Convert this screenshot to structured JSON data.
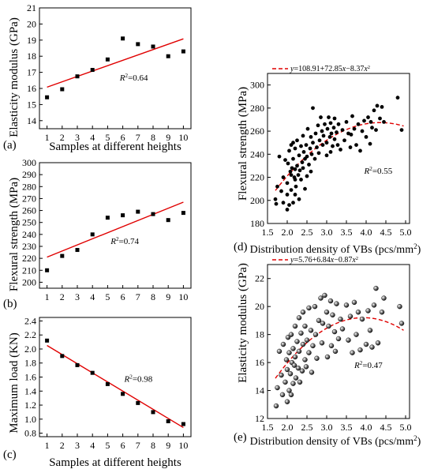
{
  "colors": {
    "fit_line": "#e00000",
    "points": "#000000",
    "axes": "#000000"
  },
  "chart_data": [
    {
      "id": "a",
      "type": "scatter",
      "panel_label": "(a)",
      "xlabel": "Samples at different heights",
      "ylabel": "Elasticity modulus (GPa)",
      "xlim": [
        0.5,
        10.5
      ],
      "ylim": [
        13.5,
        21
      ],
      "xticks": [
        1,
        2,
        3,
        4,
        5,
        6,
        7,
        8,
        9,
        10
      ],
      "yticks": [
        14,
        15,
        16,
        17,
        18,
        19,
        20,
        21
      ],
      "marker": "square",
      "points": [
        [
          1,
          15.45
        ],
        [
          2,
          15.95
        ],
        [
          3,
          16.75
        ],
        [
          4,
          17.15
        ],
        [
          5,
          17.8
        ],
        [
          6,
          19.1
        ],
        [
          7,
          18.75
        ],
        [
          8,
          18.6
        ],
        [
          9,
          18.0
        ],
        [
          10,
          18.3
        ]
      ],
      "fit_line": {
        "type": "linear",
        "from": [
          1,
          16.08
        ],
        "to": [
          10,
          19.08
        ]
      },
      "annotation": "R²=0.64",
      "annotation_at": [
        5.8,
        16.5
      ]
    },
    {
      "id": "b",
      "type": "scatter",
      "panel_label": "(b)",
      "xlabel": "",
      "ylabel": "Flexural strength (MPa)",
      "xlim": [
        0.5,
        10.5
      ],
      "ylim": [
        195,
        300
      ],
      "xticks": [
        1,
        2,
        3,
        4,
        5,
        6,
        7,
        8,
        9,
        10
      ],
      "yticks": [
        200,
        210,
        220,
        230,
        240,
        250,
        260,
        270,
        280,
        290,
        300
      ],
      "marker": "square",
      "points": [
        [
          1,
          210
        ],
        [
          2,
          222
        ],
        [
          3,
          227
        ],
        [
          4,
          240
        ],
        [
          5,
          254
        ],
        [
          6,
          256
        ],
        [
          7,
          259
        ],
        [
          8,
          257
        ],
        [
          9,
          252
        ],
        [
          10,
          258
        ]
      ],
      "fit_line": {
        "type": "linear",
        "from": [
          1,
          221
        ],
        "to": [
          10,
          267
        ]
      },
      "annotation": "R²=0.74",
      "annotation_at": [
        5.2,
        232
      ]
    },
    {
      "id": "c",
      "type": "scatter",
      "panel_label": "(c)",
      "xlabel": "Samples at different heights",
      "ylabel": "Maximum load (KN)",
      "xlim": [
        0.5,
        10.5
      ],
      "ylim": [
        0.75,
        2.45
      ],
      "xticks": [
        1,
        2,
        3,
        4,
        5,
        6,
        7,
        8,
        9,
        10
      ],
      "yticks": [
        0.8,
        1.0,
        1.2,
        1.4,
        1.6,
        1.8,
        2.0,
        2.2,
        2.4
      ],
      "marker": "square",
      "points": [
        [
          1,
          2.12
        ],
        [
          2,
          1.9
        ],
        [
          3,
          1.77
        ],
        [
          4,
          1.66
        ],
        [
          5,
          1.5
        ],
        [
          6,
          1.36
        ],
        [
          7,
          1.23
        ],
        [
          8,
          1.1
        ],
        [
          9,
          0.97
        ],
        [
          10,
          0.93
        ]
      ],
      "fit_line": {
        "type": "linear",
        "from": [
          1,
          2.05
        ],
        "to": [
          10,
          0.88
        ]
      },
      "annotation": "R²=0.98",
      "annotation_at": [
        6.1,
        1.53
      ]
    },
    {
      "id": "d",
      "type": "scatter",
      "panel_label": "(d)",
      "xlabel": "Distribution density of VBs (pcs/mm²)",
      "ylabel": "Flexural strength (MPa)",
      "xlim": [
        1.5,
        5.1
      ],
      "ylim": [
        180,
        310
      ],
      "xticks": [
        1.5,
        2.0,
        2.5,
        3.0,
        3.5,
        4.0,
        4.5,
        5.0
      ],
      "xtick_labels": [
        "1.5",
        "2.0",
        "2.5",
        "3.0",
        "3.5",
        "4.0",
        "4.5",
        "5.0"
      ],
      "yticks": [
        180,
        200,
        220,
        240,
        260,
        280,
        300
      ],
      "marker": "dot",
      "legend": "y=108.91+72.85x−8.37x²",
      "fit_curve": {
        "type": "quadratic",
        "coef": [
          108.91,
          72.85,
          -8.37
        ],
        "x_range": [
          1.7,
          4.95
        ]
      },
      "annotation": "R²=0.55",
      "annotation_at": [
        3.95,
        223
      ],
      "points": [
        [
          1.7,
          201
        ],
        [
          1.72,
          197
        ],
        [
          1.75,
          212
        ],
        [
          1.8,
          238
        ],
        [
          1.85,
          208
        ],
        [
          1.9,
          198
        ],
        [
          1.9,
          220
        ],
        [
          1.95,
          235
        ],
        [
          2.0,
          192
        ],
        [
          2.0,
          205
        ],
        [
          2.0,
          215
        ],
        [
          2.02,
          232
        ],
        [
          2.05,
          196
        ],
        [
          2.05,
          243
        ],
        [
          2.08,
          225
        ],
        [
          2.1,
          209
        ],
        [
          2.1,
          222
        ],
        [
          2.1,
          248
        ],
        [
          2.12,
          228
        ],
        [
          2.15,
          198
        ],
        [
          2.15,
          236
        ],
        [
          2.15,
          250
        ],
        [
          2.18,
          220
        ],
        [
          2.2,
          205
        ],
        [
          2.2,
          218
        ],
        [
          2.2,
          227
        ],
        [
          2.2,
          245
        ],
        [
          2.22,
          212
        ],
        [
          2.25,
          230
        ],
        [
          2.25,
          252
        ],
        [
          2.28,
          222
        ],
        [
          2.3,
          201
        ],
        [
          2.3,
          239
        ],
        [
          2.32,
          226
        ],
        [
          2.35,
          247
        ],
        [
          2.35,
          218
        ],
        [
          2.38,
          233
        ],
        [
          2.4,
          228
        ],
        [
          2.4,
          256
        ],
        [
          2.42,
          242
        ],
        [
          2.45,
          210
        ],
        [
          2.45,
          236
        ],
        [
          2.48,
          248
        ],
        [
          2.5,
          221
        ],
        [
          2.5,
          238
        ],
        [
          2.52,
          262
        ],
        [
          2.55,
          231
        ],
        [
          2.58,
          245
        ],
        [
          2.6,
          225
        ],
        [
          2.6,
          255
        ],
        [
          2.62,
          240
        ],
        [
          2.65,
          250
        ],
        [
          2.65,
          280
        ],
        [
          2.7,
          236
        ],
        [
          2.72,
          258
        ],
        [
          2.75,
          246
        ],
        [
          2.78,
          265
        ],
        [
          2.8,
          241
        ],
        [
          2.82,
          252
        ],
        [
          2.85,
          272
        ],
        [
          2.88,
          260
        ],
        [
          2.9,
          248
        ],
        [
          2.92,
          256
        ],
        [
          2.95,
          266
        ],
        [
          3.0,
          239
        ],
        [
          3.0,
          250
        ],
        [
          3.02,
          262
        ],
        [
          3.05,
          272
        ],
        [
          3.08,
          255
        ],
        [
          3.1,
          242
        ],
        [
          3.1,
          267
        ],
        [
          3.12,
          258
        ],
        [
          3.15,
          247
        ],
        [
          3.18,
          263
        ],
        [
          3.2,
          253
        ],
        [
          3.2,
          271
        ],
        [
          3.25,
          259
        ],
        [
          3.28,
          248
        ],
        [
          3.3,
          266
        ],
        [
          3.35,
          244
        ],
        [
          3.4,
          261
        ],
        [
          3.45,
          252
        ],
        [
          3.5,
          268
        ],
        [
          3.55,
          258
        ],
        [
          3.6,
          246
        ],
        [
          3.62,
          257
        ],
        [
          3.65,
          273
        ],
        [
          3.7,
          262
        ],
        [
          3.75,
          248
        ],
        [
          3.8,
          266
        ],
        [
          3.85,
          243
        ],
        [
          3.9,
          260
        ],
        [
          3.95,
          269
        ],
        [
          4.0,
          255
        ],
        [
          4.05,
          272
        ],
        [
          4.1,
          249
        ],
        [
          4.12,
          268
        ],
        [
          4.15,
          263
        ],
        [
          4.2,
          278
        ],
        [
          4.25,
          261
        ],
        [
          4.28,
          282
        ],
        [
          4.35,
          271
        ],
        [
          4.4,
          281
        ],
        [
          4.45,
          268
        ],
        [
          4.8,
          289
        ],
        [
          4.9,
          261
        ]
      ]
    },
    {
      "id": "e",
      "type": "scatter",
      "panel_label": "(e)",
      "xlabel": "Distribution density of VBs (pcs/mm²)",
      "ylabel": "Elasticity modulus (GPa)",
      "xlim": [
        1.5,
        5.1
      ],
      "ylim": [
        12,
        23
      ],
      "xticks": [
        1.5,
        2.0,
        2.5,
        3.0,
        3.5,
        4.0,
        4.5,
        5.0
      ],
      "xtick_labels": [
        "1.5",
        "2.0",
        "2.5",
        "3.0",
        "3.5",
        "4.0",
        "4.5",
        "5.0"
      ],
      "yticks": [
        12,
        14,
        16,
        18,
        20,
        22
      ],
      "marker": "sphere",
      "legend": "y=5.76+6.84x−0.87x²",
      "fit_curve": {
        "type": "quadratic",
        "coef": [
          5.76,
          6.84,
          -0.87
        ],
        "x_range": [
          1.7,
          4.95
        ]
      },
      "annotation": "R²=0.47",
      "annotation_at": [
        3.7,
        15.6
      ],
      "points": [
        [
          1.72,
          12.9
        ],
        [
          1.75,
          14.2
        ],
        [
          1.8,
          16.8
        ],
        [
          1.85,
          15.1
        ],
        [
          1.88,
          13.7
        ],
        [
          1.9,
          17.3
        ],
        [
          1.95,
          14.6
        ],
        [
          1.98,
          16.2
        ],
        [
          2.0,
          13.2
        ],
        [
          2.0,
          15.5
        ],
        [
          2.02,
          17.8
        ],
        [
          2.05,
          14.0
        ],
        [
          2.05,
          16.7
        ],
        [
          2.08,
          15.2
        ],
        [
          2.1,
          13.7
        ],
        [
          2.1,
          18.0
        ],
        [
          2.12,
          16.0
        ],
        [
          2.15,
          14.5
        ],
        [
          2.15,
          17.0
        ],
        [
          2.18,
          15.8
        ],
        [
          2.2,
          18.6
        ],
        [
          2.2,
          16.4
        ],
        [
          2.22,
          14.9
        ],
        [
          2.25,
          17.5
        ],
        [
          2.28,
          15.6
        ],
        [
          2.3,
          19.2
        ],
        [
          2.3,
          16.8
        ],
        [
          2.32,
          14.6
        ],
        [
          2.35,
          18.1
        ],
        [
          2.38,
          15.4
        ],
        [
          2.4,
          17.3
        ],
        [
          2.4,
          19.6
        ],
        [
          2.45,
          16.2
        ],
        [
          2.45,
          18.6
        ],
        [
          2.48,
          15.7
        ],
        [
          2.5,
          17.6
        ],
        [
          2.55,
          19.9
        ],
        [
          2.55,
          16.7
        ],
        [
          2.6,
          18.3
        ],
        [
          2.62,
          15.3
        ],
        [
          2.65,
          17.2
        ],
        [
          2.7,
          20.0
        ],
        [
          2.72,
          18.0
        ],
        [
          2.75,
          16.3
        ],
        [
          2.8,
          19.0
        ],
        [
          2.85,
          20.6
        ],
        [
          2.88,
          17.4
        ],
        [
          2.9,
          18.8
        ],
        [
          2.95,
          20.8
        ],
        [
          3.0,
          19.6
        ],
        [
          3.02,
          16.4
        ],
        [
          3.05,
          18.6
        ],
        [
          3.1,
          20.4
        ],
        [
          3.12,
          17.2
        ],
        [
          3.15,
          19.4
        ],
        [
          3.2,
          18.2
        ],
        [
          3.22,
          16.8
        ],
        [
          3.25,
          20.2
        ],
        [
          3.3,
          17.7
        ],
        [
          3.35,
          19.1
        ],
        [
          3.4,
          18.4
        ],
        [
          3.5,
          20.1
        ],
        [
          3.55,
          17.6
        ],
        [
          3.6,
          19.3
        ],
        [
          3.65,
          16.7
        ],
        [
          3.7,
          20.3
        ],
        [
          3.75,
          18.0
        ],
        [
          3.8,
          19.6
        ],
        [
          3.85,
          16.9
        ],
        [
          3.9,
          19.1
        ],
        [
          4.0,
          17.3
        ],
        [
          4.05,
          19.7
        ],
        [
          4.1,
          18.3
        ],
        [
          4.15,
          17.1
        ],
        [
          4.2,
          20.1
        ],
        [
          4.25,
          21.3
        ],
        [
          4.3,
          17.4
        ],
        [
          4.4,
          19.6
        ],
        [
          4.45,
          20.6
        ],
        [
          4.85,
          20.0
        ],
        [
          4.9,
          18.8
        ]
      ]
    }
  ]
}
